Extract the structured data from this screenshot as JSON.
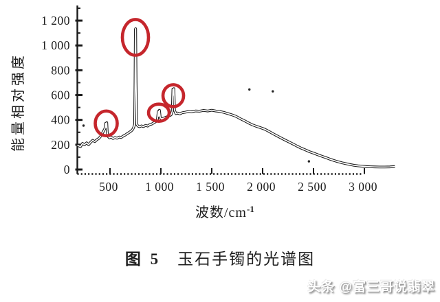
{
  "figure": {
    "caption_prefix": "图 5",
    "caption_title": "玉石手镯的光谱图",
    "watermark": "头条 @富三哥说翡翠"
  },
  "chart_data": {
    "type": "line",
    "title": "图5 玉石手镯的光谱图",
    "xlabel": "波数/cm⁻¹",
    "xlabel_base": "波数/cm",
    "xlabel_sup": "-1",
    "ylabel": "能量相对强度",
    "xlim": [
      150,
      3400
    ],
    "ylim": [
      0,
      1340
    ],
    "grid": false,
    "legend": null,
    "axis_color": "#1b1b1b",
    "line_color": "#1b1b1b",
    "annotation_color": "#c5262c",
    "x_ticks": [
      500,
      1000,
      1500,
      2000,
      2500,
      3000
    ],
    "x_tick_labels": [
      "500",
      "1 000",
      "1 500",
      "2 000",
      "2 500",
      "3 000"
    ],
    "y_ticks": [
      0,
      200,
      400,
      600,
      800,
      1000,
      1200
    ],
    "y_tick_labels": [
      "0",
      "200",
      "400",
      "600",
      "800",
      "1 000",
      "1 200"
    ],
    "y_minor_ticks": [
      100,
      300,
      500,
      700,
      900,
      1100,
      1300
    ],
    "series": [
      {
        "name": "光谱曲线",
        "x": [
          180,
          210,
          230,
          250,
          270,
          290,
          310,
          330,
          350,
          370,
          390,
          410,
          430,
          450,
          458,
          463,
          468,
          473,
          480,
          495,
          510,
          530,
          550,
          570,
          590,
          610,
          630,
          650,
          670,
          690,
          710,
          725,
          735,
          742,
          746,
          749,
          752,
          756,
          762,
          775,
          790,
          810,
          830,
          850,
          870,
          890,
          910,
          930,
          950,
          965,
          974,
          980,
          986,
          994,
          1005,
          1020,
          1040,
          1060,
          1080,
          1100,
          1112,
          1118,
          1123,
          1128,
          1134,
          1148,
          1165,
          1185,
          1210,
          1240,
          1270,
          1300,
          1340,
          1380,
          1420,
          1460,
          1500,
          1540,
          1580,
          1620,
          1660,
          1700,
          1740,
          1780,
          1820,
          1860,
          1900,
          1940,
          1980,
          2020,
          2060,
          2100,
          2140,
          2180,
          2220,
          2260,
          2300,
          2340,
          2380,
          2420,
          2460,
          2500,
          2540,
          2580,
          2620,
          2660,
          2700,
          2740,
          2780,
          2820,
          2860,
          2900,
          2940,
          2980,
          3020,
          3060,
          3100,
          3150,
          3200,
          3250,
          3300
        ],
        "y": [
          195,
          185,
          210,
          200,
          215,
          200,
          220,
          235,
          225,
          240,
          250,
          270,
          300,
          330,
          372,
          340,
          378,
          300,
          268,
          255,
          262,
          250,
          258,
          252,
          262,
          258,
          270,
          278,
          290,
          300,
          312,
          325,
          345,
          365,
          700,
          1130,
          1135,
          700,
          365,
          350,
          345,
          352,
          346,
          356,
          350,
          362,
          366,
          376,
          386,
          398,
          468,
          430,
          478,
          420,
          408,
          412,
          418,
          425,
          432,
          440,
          470,
          648,
          600,
          652,
          478,
          450,
          456,
          448,
          458,
          462,
          468,
          465,
          472,
          470,
          476,
          472,
          478,
          472,
          468,
          460,
          450,
          440,
          428,
          410,
          394,
          376,
          360,
          348,
          337,
          325,
          308,
          290,
          272,
          255,
          238,
          222,
          205,
          188,
          172,
          158,
          144,
          132,
          120,
          108,
          96,
          84,
          73,
          63,
          54,
          47,
          40,
          34,
          30,
          27,
          24,
          22,
          21,
          20,
          20,
          21,
          24
        ]
      }
    ],
    "annotations": {
      "description": "红色圈出的特征峰",
      "circled_peaks": [
        {
          "x": 463,
          "y": 372,
          "rx": 16,
          "ry": 18
        },
        {
          "x": 750,
          "y": 1065,
          "rx": 19,
          "ry": 26
        },
        {
          "x": 980,
          "y": 458,
          "rx": 15,
          "ry": 12.5
        },
        {
          "x": 1122,
          "y": 595,
          "rx": 15,
          "ry": 16
        }
      ]
    },
    "specks": [
      [
        240,
        354
      ],
      [
        1870,
        645
      ],
      [
        2100,
        630
      ],
      [
        2455,
        66
      ]
    ]
  }
}
